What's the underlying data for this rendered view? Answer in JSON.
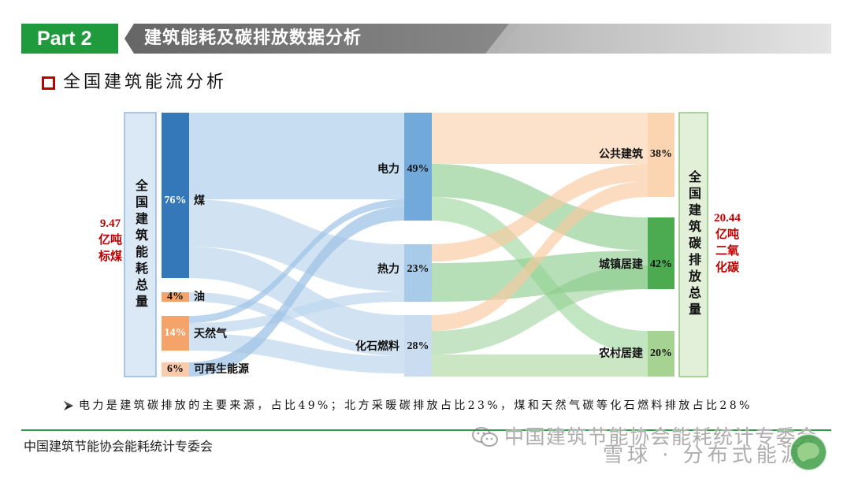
{
  "header": {
    "part_label": "Part 2",
    "title": "建筑能耗及碳排放数据分析"
  },
  "section": {
    "icon": "red-square-bullet-icon",
    "title": "全国建筑能流分析"
  },
  "colors": {
    "brand_green": "#1f9a3d",
    "accent_red": "#c00000"
  },
  "sankey": {
    "left_total": {
      "label": "全国建筑能耗总量",
      "lines": [
        "9.47",
        "亿吨",
        "标煤"
      ]
    },
    "sources": [
      {
        "name": "煤",
        "percent": "76%",
        "color": "#3578ba"
      },
      {
        "name": "油",
        "percent": "4%",
        "color": "#f4a46a"
      },
      {
        "name": "天然气",
        "percent": "14%",
        "color": "#f4a46a"
      },
      {
        "name": "可再生能源",
        "percent": "6%",
        "color": "#f8cbad"
      }
    ],
    "carriers": [
      {
        "name": "电力",
        "percent": "49%",
        "color": "#72a9db"
      },
      {
        "name": "热力",
        "percent": "23%",
        "color": "#a9cbea"
      },
      {
        "name": "化石燃料",
        "percent": "28%",
        "color": "#c9dcf0"
      }
    ],
    "sectors": [
      {
        "name": "公共建筑",
        "percent": "38%",
        "color": "#fbd4b2"
      },
      {
        "name": "城镇居建",
        "percent": "42%",
        "color": "#4caa50"
      },
      {
        "name": "农村居建",
        "percent": "20%",
        "color": "#a6d392"
      }
    ],
    "right_total": {
      "label": "全国建筑碳排放总量",
      "lines": [
        "20.44",
        "亿吨",
        "二氧",
        "化碳"
      ]
    }
  },
  "note": {
    "bullet_icon": "arrowhead-bullet-icon",
    "text": "电力是建筑碳排放的主要来源，占比49%；北方采暖碳排放占比23%，煤和天然气碳等化石燃料排放占比28%"
  },
  "footer": {
    "org": "中国建筑节能协会能耗统计专委会"
  },
  "watermarks": {
    "wechat_icon": "wechat-icon",
    "account": "中国建筑节能协会能耗统计专委会",
    "platform": "雪球 · 分布式能源",
    "logo": "association-logo"
  }
}
